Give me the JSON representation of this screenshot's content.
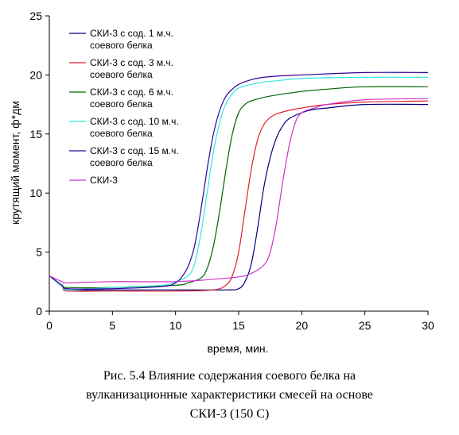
{
  "chart_data": {
    "type": "line",
    "title": "",
    "xlabel": "время, мин.",
    "ylabel": "крутящий момент, ф*дм",
    "xlim": [
      0,
      30
    ],
    "ylim": [
      0,
      25
    ],
    "xticks": [
      0,
      5,
      10,
      15,
      20,
      25,
      30
    ],
    "yticks": [
      0,
      5,
      10,
      15,
      20,
      25
    ],
    "grid": false,
    "legend_position": "top-left",
    "series": [
      {
        "name": "СКИ-3 с сод. 1 м.ч. соевого белка",
        "legend_lines": [
          "СКИ-3 с сод. 1 м.ч.",
          "соевого белка"
        ],
        "color": "#000080",
        "x": [
          0,
          1,
          1.5,
          5,
          10,
          14,
          15,
          15.5,
          16,
          16.5,
          17,
          17.5,
          18,
          18.5,
          19,
          20,
          21,
          22,
          25,
          30
        ],
        "y": [
          3.0,
          2.1,
          1.8,
          1.8,
          1.8,
          1.8,
          1.9,
          2.5,
          4.0,
          7.0,
          10.5,
          13.0,
          14.7,
          15.7,
          16.3,
          16.8,
          17.1,
          17.2,
          17.5,
          17.5
        ]
      },
      {
        "name": "СКИ-3 с сод. 3 м.ч. соевого белка",
        "legend_lines": [
          "СКИ-3 с сод. 3 м.ч.",
          "соевого белка"
        ],
        "color": "#e0202c",
        "x": [
          0,
          1,
          1.5,
          5,
          10,
          13,
          14,
          14.5,
          15,
          15.5,
          16,
          16.5,
          17,
          17.5,
          18,
          19,
          20,
          22,
          25,
          30
        ],
        "y": [
          3.0,
          2.1,
          1.7,
          1.7,
          1.7,
          1.8,
          2.2,
          3.0,
          5.0,
          8.5,
          12.0,
          14.5,
          15.8,
          16.4,
          16.7,
          17.0,
          17.2,
          17.5,
          17.7,
          17.8
        ]
      },
      {
        "name": "СКИ-3 с сод. 6 м.ч. соевого белка",
        "legend_lines": [
          "СКИ-3 с сод. 6 м.ч.",
          "соевого белка"
        ],
        "color": "#006400",
        "x": [
          0,
          1,
          1.5,
          5,
          10,
          11,
          12,
          12.5,
          13,
          13.5,
          14,
          14.5,
          15,
          15.5,
          16,
          17,
          18,
          20,
          22,
          25,
          30
        ],
        "y": [
          3.0,
          2.2,
          2.0,
          2.0,
          2.2,
          2.4,
          2.8,
          3.6,
          5.5,
          8.5,
          12.0,
          15.0,
          16.8,
          17.5,
          17.8,
          18.1,
          18.3,
          18.6,
          18.8,
          19.0,
          19.0
        ]
      },
      {
        "name": "СКИ-3 с сод. 10 м.ч. соевого белка",
        "legend_lines": [
          "СКИ-3 с сод. 10 м.ч.",
          "соевого белка"
        ],
        "color": "#33e6e0",
        "x": [
          0,
          1,
          1.5,
          5,
          9,
          10,
          11,
          11.5,
          12,
          12.5,
          13,
          13.5,
          14,
          14.5,
          15,
          16,
          17,
          18,
          20,
          25,
          30
        ],
        "y": [
          3.0,
          2.1,
          1.8,
          2.0,
          2.2,
          2.5,
          3.0,
          4.0,
          6.5,
          10.0,
          13.5,
          16.0,
          17.6,
          18.4,
          18.9,
          19.2,
          19.4,
          19.5,
          19.7,
          19.8,
          19.8
        ]
      },
      {
        "name": "СКИ-3 с сод. 15 м.ч. соевого белка",
        "legend_lines": [
          "СКИ-3 с сод. 15 м.ч.",
          "соевого белка"
        ],
        "color": "#330099",
        "x": [
          0,
          1,
          1.5,
          5,
          9,
          10,
          10.5,
          11,
          11.5,
          12,
          12.5,
          13,
          13.5,
          14,
          14.5,
          15,
          16,
          17,
          18,
          20,
          25,
          30
        ],
        "y": [
          3.0,
          2.2,
          1.9,
          1.9,
          2.1,
          2.4,
          2.9,
          3.8,
          5.5,
          8.5,
          12.0,
          15.0,
          17.0,
          18.2,
          18.8,
          19.2,
          19.6,
          19.8,
          19.9,
          20.0,
          20.2,
          20.2
        ]
      },
      {
        "name": "СКИ-3",
        "legend_lines": [
          "СКИ-3"
        ],
        "color": "#cc33cc",
        "x": [
          0,
          1,
          1.5,
          5,
          10,
          13,
          15,
          16,
          17,
          17.5,
          18,
          18.5,
          19,
          19.5,
          20,
          21,
          22,
          25,
          30
        ],
        "y": [
          3.0,
          2.5,
          2.4,
          2.5,
          2.5,
          2.7,
          2.9,
          3.2,
          3.9,
          5.0,
          7.5,
          11.0,
          14.0,
          16.0,
          16.8,
          17.2,
          17.5,
          17.9,
          18.0
        ]
      }
    ]
  },
  "caption_lines": [
    "Рис. 5.4 Влияние содержания соевого белка на",
    "вулканизационные характеристики смесей на основе",
    "СКИ-3 (150 С)"
  ]
}
